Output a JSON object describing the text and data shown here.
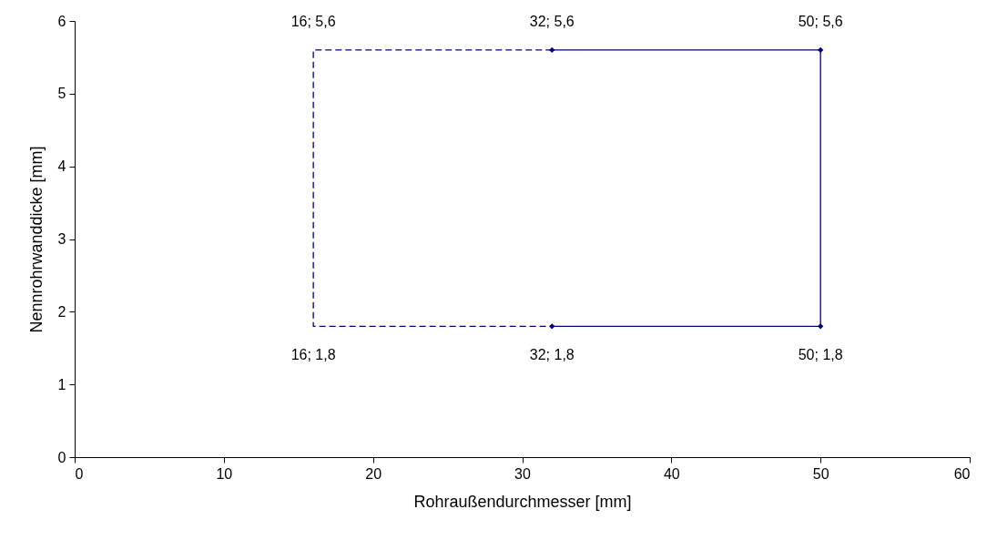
{
  "chart_data": {
    "type": "line",
    "xlabel": "Rohraußendurchmesser [mm]",
    "ylabel": "Nennrohrwanddicke [mm]",
    "xlim": [
      0,
      60
    ],
    "xticks": [
      0,
      10,
      20,
      30,
      40,
      50,
      60
    ],
    "ylim": [
      0,
      6
    ],
    "yticks": [
      0,
      1,
      2,
      3,
      4,
      5,
      6
    ],
    "grid": false,
    "series": [
      {
        "color": "#000080",
        "x": [
          32,
          50,
          50,
          32
        ],
        "values": [
          5.6,
          5.6,
          1.8,
          1.8
        ],
        "marker": "diamond",
        "line_style": "solid"
      },
      {
        "color": "#000080",
        "x": [
          32,
          16,
          16,
          32
        ],
        "values": [
          5.6,
          5.6,
          1.8,
          1.8
        ],
        "marker": "none",
        "line_style": "dashed"
      }
    ],
    "annotations": [
      {
        "text": "16; 5,6",
        "x": 16,
        "y": 5.6
      },
      {
        "text": "32; 5,6",
        "x": 32,
        "y": 5.6
      },
      {
        "text": "50; 5,6",
        "x": 50,
        "y": 5.6
      },
      {
        "text": "16; 1,8",
        "x": 16,
        "y": 1.8
      },
      {
        "text": "32; 1,8",
        "x": 32,
        "y": 1.8
      },
      {
        "text": "50; 1,8",
        "x": 50,
        "y": 1.8
      }
    ]
  }
}
